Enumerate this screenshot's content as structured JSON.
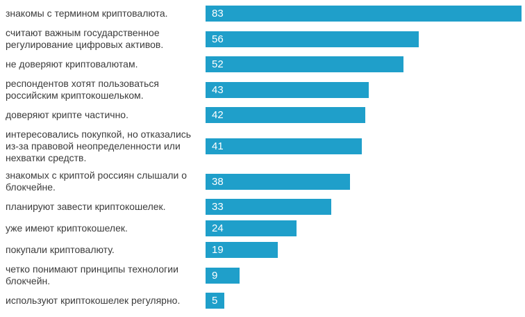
{
  "chart_data": {
    "type": "bar",
    "orientation": "horizontal",
    "title": "",
    "xlabel": "",
    "ylabel": "",
    "grid": false,
    "legend": false,
    "xlim": [
      0,
      84
    ],
    "value_label_position": "inside-left",
    "bar_color": "#1f9fca",
    "value_text_color": "#ffffff",
    "label_text_color": "#3b3b3b",
    "background_color": "#ffffff",
    "categories": [
      "знакомы с термином криптовалюта.",
      "считают важным государственное регулирование цифровых активов.",
      "не доверяют криптовалютам.",
      "респондентов хотят пользоваться российским криптокошельком.",
      "доверяют крипте частично.",
      "интересовались покупкой, но отказались из-за правовой неопределенности или нехватки средств.",
      "знакомых с криптой россиян слышали о блокчейне.",
      "планируют завести криптокошелек.",
      "уже имеют криптокошелек.",
      "покупали криптовалюту.",
      "четко понимают принципы технологии блокчейн.",
      "используют криптокошелек регулярно."
    ],
    "values": [
      83,
      56,
      52,
      43,
      42,
      41,
      38,
      33,
      24,
      19,
      9,
      5
    ]
  }
}
